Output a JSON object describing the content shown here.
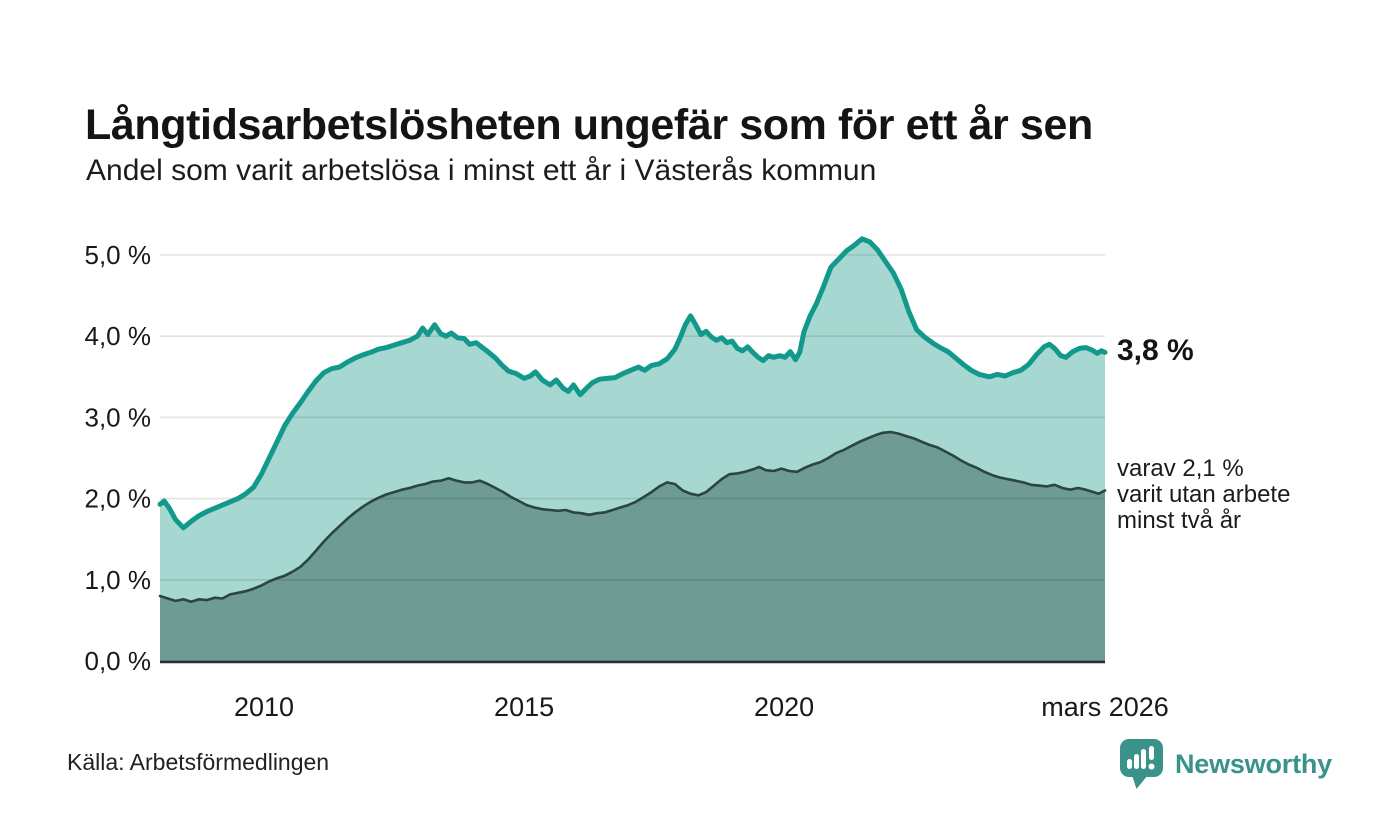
{
  "header": {
    "title": "Långtidsarbetslösheten ungefär som för ett år sen",
    "subtitle": "Andel som varit arbetslösa i minst ett år i Västerås kommun"
  },
  "chart_data": {
    "type": "area",
    "title": "Långtidsarbetslösheten ungefär som för ett år sen",
    "subtitle": "Andel som varit arbetslösa i minst ett år i Västerås kommun",
    "grid": true,
    "x_axis": {
      "min": 2008.0,
      "max": 2026.17,
      "ticks": [
        {
          "year": 2010,
          "label": "2010"
        },
        {
          "year": 2015,
          "label": "2015"
        },
        {
          "year": 2020,
          "label": "2020"
        },
        {
          "year": 2026.17,
          "label": "mars 2026"
        }
      ]
    },
    "y_axis": {
      "min": 0,
      "max": 5,
      "ticks": [
        {
          "value": 0,
          "label": "0,0 %"
        },
        {
          "value": 1,
          "label": "1,0 %"
        },
        {
          "value": 2,
          "label": "2,0 %"
        },
        {
          "value": 3,
          "label": "3,0 %"
        },
        {
          "value": 4,
          "label": "4,0 %"
        },
        {
          "value": 5,
          "label": "5,0 %"
        }
      ]
    },
    "series": [
      {
        "name": "Andel som varit arbetslösa minst ett år",
        "color": "#13998c",
        "fill": "#a6d8d1",
        "stroke_width": 5,
        "end_value": "3,8 %",
        "points": [
          [
            2008.0,
            1.93
          ],
          [
            2008.08,
            1.97
          ],
          [
            2008.18,
            1.88
          ],
          [
            2008.3,
            1.74
          ],
          [
            2008.45,
            1.64
          ],
          [
            2008.6,
            1.72
          ],
          [
            2008.75,
            1.79
          ],
          [
            2008.9,
            1.84
          ],
          [
            2009.05,
            1.88
          ],
          [
            2009.2,
            1.92
          ],
          [
            2009.35,
            1.96
          ],
          [
            2009.5,
            2.0
          ],
          [
            2009.65,
            2.06
          ],
          [
            2009.8,
            2.14
          ],
          [
            2009.95,
            2.3
          ],
          [
            2010.1,
            2.5
          ],
          [
            2010.25,
            2.7
          ],
          [
            2010.4,
            2.9
          ],
          [
            2010.55,
            3.05
          ],
          [
            2010.7,
            3.18
          ],
          [
            2010.85,
            3.32
          ],
          [
            2011.0,
            3.45
          ],
          [
            2011.15,
            3.55
          ],
          [
            2011.3,
            3.6
          ],
          [
            2011.45,
            3.62
          ],
          [
            2011.6,
            3.68
          ],
          [
            2011.75,
            3.73
          ],
          [
            2011.9,
            3.77
          ],
          [
            2012.05,
            3.8
          ],
          [
            2012.2,
            3.84
          ],
          [
            2012.35,
            3.86
          ],
          [
            2012.5,
            3.89
          ],
          [
            2012.65,
            3.92
          ],
          [
            2012.8,
            3.95
          ],
          [
            2012.95,
            4.0
          ],
          [
            2013.05,
            4.1
          ],
          [
            2013.15,
            4.02
          ],
          [
            2013.28,
            4.14
          ],
          [
            2013.4,
            4.03
          ],
          [
            2013.5,
            4.0
          ],
          [
            2013.6,
            4.04
          ],
          [
            2013.72,
            3.98
          ],
          [
            2013.85,
            3.97
          ],
          [
            2013.95,
            3.9
          ],
          [
            2014.08,
            3.92
          ],
          [
            2014.2,
            3.86
          ],
          [
            2014.32,
            3.8
          ],
          [
            2014.45,
            3.73
          ],
          [
            2014.58,
            3.64
          ],
          [
            2014.7,
            3.57
          ],
          [
            2014.85,
            3.54
          ],
          [
            2015.0,
            3.48
          ],
          [
            2015.12,
            3.51
          ],
          [
            2015.22,
            3.56
          ],
          [
            2015.35,
            3.46
          ],
          [
            2015.5,
            3.4
          ],
          [
            2015.62,
            3.46
          ],
          [
            2015.75,
            3.36
          ],
          [
            2015.85,
            3.32
          ],
          [
            2015.95,
            3.4
          ],
          [
            2016.08,
            3.28
          ],
          [
            2016.2,
            3.36
          ],
          [
            2016.32,
            3.43
          ],
          [
            2016.45,
            3.47
          ],
          [
            2016.6,
            3.48
          ],
          [
            2016.75,
            3.49
          ],
          [
            2016.9,
            3.54
          ],
          [
            2017.05,
            3.58
          ],
          [
            2017.2,
            3.62
          ],
          [
            2017.32,
            3.58
          ],
          [
            2017.45,
            3.64
          ],
          [
            2017.6,
            3.66
          ],
          [
            2017.75,
            3.72
          ],
          [
            2017.9,
            3.84
          ],
          [
            2018.0,
            3.98
          ],
          [
            2018.1,
            4.14
          ],
          [
            2018.2,
            4.25
          ],
          [
            2018.3,
            4.14
          ],
          [
            2018.4,
            4.02
          ],
          [
            2018.5,
            4.06
          ],
          [
            2018.6,
            3.99
          ],
          [
            2018.7,
            3.95
          ],
          [
            2018.8,
            3.98
          ],
          [
            2018.9,
            3.92
          ],
          [
            2019.0,
            3.94
          ],
          [
            2019.1,
            3.85
          ],
          [
            2019.2,
            3.82
          ],
          [
            2019.3,
            3.87
          ],
          [
            2019.4,
            3.8
          ],
          [
            2019.5,
            3.74
          ],
          [
            2019.6,
            3.7
          ],
          [
            2019.7,
            3.76
          ],
          [
            2019.8,
            3.74
          ],
          [
            2019.92,
            3.76
          ],
          [
            2020.02,
            3.74
          ],
          [
            2020.12,
            3.81
          ],
          [
            2020.22,
            3.71
          ],
          [
            2020.3,
            3.8
          ],
          [
            2020.38,
            4.05
          ],
          [
            2020.5,
            4.25
          ],
          [
            2020.62,
            4.4
          ],
          [
            2020.75,
            4.6
          ],
          [
            2020.9,
            4.85
          ],
          [
            2021.05,
            4.95
          ],
          [
            2021.2,
            5.05
          ],
          [
            2021.35,
            5.12
          ],
          [
            2021.5,
            5.2
          ],
          [
            2021.65,
            5.16
          ],
          [
            2021.8,
            5.06
          ],
          [
            2021.95,
            4.92
          ],
          [
            2022.1,
            4.78
          ],
          [
            2022.25,
            4.58
          ],
          [
            2022.4,
            4.3
          ],
          [
            2022.55,
            4.08
          ],
          [
            2022.7,
            3.99
          ],
          [
            2022.85,
            3.92
          ],
          [
            2023.0,
            3.86
          ],
          [
            2023.15,
            3.81
          ],
          [
            2023.3,
            3.73
          ],
          [
            2023.45,
            3.65
          ],
          [
            2023.6,
            3.58
          ],
          [
            2023.75,
            3.53
          ],
          [
            2023.95,
            3.5
          ],
          [
            2024.1,
            3.53
          ],
          [
            2024.25,
            3.51
          ],
          [
            2024.4,
            3.55
          ],
          [
            2024.55,
            3.58
          ],
          [
            2024.7,
            3.65
          ],
          [
            2024.85,
            3.77
          ],
          [
            2025.0,
            3.87
          ],
          [
            2025.1,
            3.9
          ],
          [
            2025.2,
            3.85
          ],
          [
            2025.32,
            3.76
          ],
          [
            2025.42,
            3.74
          ],
          [
            2025.55,
            3.81
          ],
          [
            2025.68,
            3.85
          ],
          [
            2025.8,
            3.86
          ],
          [
            2025.92,
            3.83
          ],
          [
            2026.02,
            3.79
          ],
          [
            2026.1,
            3.82
          ],
          [
            2026.17,
            3.8
          ]
        ]
      },
      {
        "name": "Andel som varit utan arbete minst två år",
        "color": "#2a463f",
        "fill": "#6e9b94",
        "stroke_width": 2.6,
        "end_value": "2,1 %",
        "points": [
          [
            2008.0,
            0.8
          ],
          [
            2008.15,
            0.77
          ],
          [
            2008.3,
            0.74
          ],
          [
            2008.45,
            0.76
          ],
          [
            2008.6,
            0.73
          ],
          [
            2008.75,
            0.76
          ],
          [
            2008.9,
            0.75
          ],
          [
            2009.05,
            0.78
          ],
          [
            2009.2,
            0.77
          ],
          [
            2009.35,
            0.82
          ],
          [
            2009.5,
            0.84
          ],
          [
            2009.65,
            0.86
          ],
          [
            2009.8,
            0.89
          ],
          [
            2009.95,
            0.93
          ],
          [
            2010.1,
            0.98
          ],
          [
            2010.25,
            1.02
          ],
          [
            2010.4,
            1.05
          ],
          [
            2010.55,
            1.1
          ],
          [
            2010.7,
            1.16
          ],
          [
            2010.85,
            1.25
          ],
          [
            2011.0,
            1.36
          ],
          [
            2011.15,
            1.47
          ],
          [
            2011.3,
            1.57
          ],
          [
            2011.45,
            1.66
          ],
          [
            2011.6,
            1.75
          ],
          [
            2011.75,
            1.83
          ],
          [
            2011.9,
            1.9
          ],
          [
            2012.05,
            1.96
          ],
          [
            2012.2,
            2.01
          ],
          [
            2012.35,
            2.05
          ],
          [
            2012.5,
            2.08
          ],
          [
            2012.65,
            2.11
          ],
          [
            2012.8,
            2.13
          ],
          [
            2012.95,
            2.16
          ],
          [
            2013.1,
            2.18
          ],
          [
            2013.25,
            2.21
          ],
          [
            2013.4,
            2.22
          ],
          [
            2013.55,
            2.25
          ],
          [
            2013.7,
            2.22
          ],
          [
            2013.85,
            2.2
          ],
          [
            2014.0,
            2.2
          ],
          [
            2014.15,
            2.22
          ],
          [
            2014.3,
            2.18
          ],
          [
            2014.45,
            2.13
          ],
          [
            2014.6,
            2.08
          ],
          [
            2014.75,
            2.02
          ],
          [
            2014.9,
            1.97
          ],
          [
            2015.05,
            1.92
          ],
          [
            2015.2,
            1.89
          ],
          [
            2015.35,
            1.87
          ],
          [
            2015.5,
            1.86
          ],
          [
            2015.65,
            1.85
          ],
          [
            2015.8,
            1.86
          ],
          [
            2015.95,
            1.83
          ],
          [
            2016.1,
            1.82
          ],
          [
            2016.25,
            1.8
          ],
          [
            2016.4,
            1.82
          ],
          [
            2016.55,
            1.83
          ],
          [
            2016.7,
            1.86
          ],
          [
            2016.85,
            1.89
          ],
          [
            2017.0,
            1.92
          ],
          [
            2017.15,
            1.96
          ],
          [
            2017.3,
            2.02
          ],
          [
            2017.45,
            2.08
          ],
          [
            2017.6,
            2.15
          ],
          [
            2017.75,
            2.2
          ],
          [
            2017.9,
            2.18
          ],
          [
            2018.05,
            2.1
          ],
          [
            2018.2,
            2.06
          ],
          [
            2018.35,
            2.04
          ],
          [
            2018.5,
            2.08
          ],
          [
            2018.65,
            2.16
          ],
          [
            2018.8,
            2.24
          ],
          [
            2018.95,
            2.3
          ],
          [
            2019.1,
            2.31
          ],
          [
            2019.25,
            2.33
          ],
          [
            2019.4,
            2.36
          ],
          [
            2019.52,
            2.39
          ],
          [
            2019.65,
            2.35
          ],
          [
            2019.8,
            2.34
          ],
          [
            2019.95,
            2.37
          ],
          [
            2020.1,
            2.34
          ],
          [
            2020.25,
            2.33
          ],
          [
            2020.4,
            2.38
          ],
          [
            2020.55,
            2.42
          ],
          [
            2020.7,
            2.45
          ],
          [
            2020.85,
            2.5
          ],
          [
            2021.0,
            2.56
          ],
          [
            2021.15,
            2.6
          ],
          [
            2021.3,
            2.65
          ],
          [
            2021.45,
            2.7
          ],
          [
            2021.6,
            2.74
          ],
          [
            2021.75,
            2.78
          ],
          [
            2021.9,
            2.81
          ],
          [
            2022.05,
            2.82
          ],
          [
            2022.2,
            2.8
          ],
          [
            2022.35,
            2.77
          ],
          [
            2022.5,
            2.74
          ],
          [
            2022.65,
            2.7
          ],
          [
            2022.8,
            2.66
          ],
          [
            2022.95,
            2.63
          ],
          [
            2023.1,
            2.58
          ],
          [
            2023.25,
            2.53
          ],
          [
            2023.4,
            2.47
          ],
          [
            2023.55,
            2.42
          ],
          [
            2023.7,
            2.38
          ],
          [
            2023.85,
            2.33
          ],
          [
            2024.0,
            2.29
          ],
          [
            2024.15,
            2.26
          ],
          [
            2024.3,
            2.24
          ],
          [
            2024.45,
            2.22
          ],
          [
            2024.6,
            2.2
          ],
          [
            2024.75,
            2.17
          ],
          [
            2024.9,
            2.16
          ],
          [
            2025.05,
            2.15
          ],
          [
            2025.2,
            2.17
          ],
          [
            2025.35,
            2.13
          ],
          [
            2025.5,
            2.11
          ],
          [
            2025.65,
            2.13
          ],
          [
            2025.8,
            2.11
          ],
          [
            2025.95,
            2.08
          ],
          [
            2026.05,
            2.06
          ],
          [
            2026.17,
            2.1
          ]
        ]
      }
    ],
    "annotations": {
      "end_value_label": "3,8 %",
      "secondary_label_lines": [
        "varav 2,1 %",
        "varit utan arbete",
        "minst två år"
      ]
    },
    "legend_position": "none",
    "layout": {
      "grid_color": "rgba(0,0,0,0.11)",
      "baseline_color": "#2d2d2d"
    }
  },
  "footer": {
    "source": "Källa: Arbetsförmedlingen",
    "brand": "Newsworthy",
    "brand_color": "#3a938b"
  }
}
